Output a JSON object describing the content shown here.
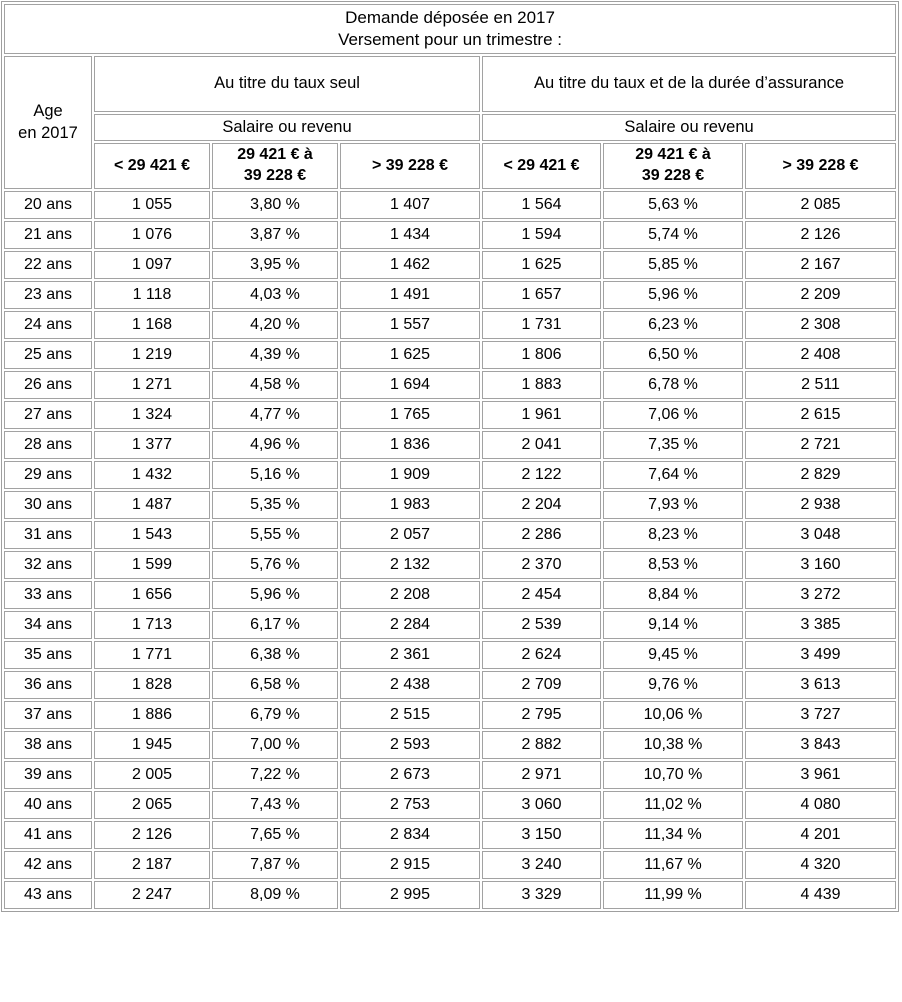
{
  "colors": {
    "border_outer": "#9f9f9f",
    "border_cell": "#a2a2a2",
    "background": "#ffffff",
    "text": "#000000"
  },
  "header": {
    "title": "Demande déposée en 2017\nVersement pour un trimestre :",
    "age_label": "Age\nen 2017",
    "group_left": "Au titre du taux seul",
    "group_right": "Au titre du taux et de la durée d’assurance",
    "subheader_left": "Salaire ou revenu",
    "subheader_right": "Salaire ou revenu",
    "ranges": [
      "< 29 421 €",
      "29 421 € à\n39 228 €",
      "> 39 228 €"
    ]
  },
  "rows": [
    [
      "20 ans",
      "1 055",
      "3,80 %",
      "1 407",
      "1 564",
      "5,63 %",
      "2 085"
    ],
    [
      "21 ans",
      "1 076",
      "3,87 %",
      "1 434",
      "1 594",
      "5,74 %",
      "2 126"
    ],
    [
      "22 ans",
      "1 097",
      "3,95 %",
      "1 462",
      "1 625",
      "5,85 %",
      "2 167"
    ],
    [
      "23 ans",
      "1 118",
      "4,03 %",
      "1 491",
      "1 657",
      "5,96 %",
      "2 209"
    ],
    [
      "24 ans",
      "1 168",
      "4,20 %",
      "1 557",
      "1 731",
      "6,23 %",
      "2 308"
    ],
    [
      "25 ans",
      "1 219",
      "4,39 %",
      "1 625",
      "1 806",
      "6,50 %",
      "2 408"
    ],
    [
      "26 ans",
      "1 271",
      "4,58 %",
      "1 694",
      "1 883",
      "6,78 %",
      "2 511"
    ],
    [
      "27 ans",
      "1 324",
      "4,77 %",
      "1 765",
      "1 961",
      "7,06 %",
      "2 615"
    ],
    [
      "28 ans",
      "1 377",
      "4,96 %",
      "1 836",
      "2 041",
      "7,35 %",
      "2 721"
    ],
    [
      "29 ans",
      "1 432",
      "5,16 %",
      "1 909",
      "2 122",
      "7,64 %",
      "2 829"
    ],
    [
      "30 ans",
      "1 487",
      "5,35 %",
      "1 983",
      "2 204",
      "7,93 %",
      "2 938"
    ],
    [
      "31 ans",
      "1 543",
      "5,55 %",
      "2 057",
      "2 286",
      "8,23 %",
      "3 048"
    ],
    [
      "32 ans",
      "1 599",
      "5,76 %",
      "2 132",
      "2 370",
      "8,53 %",
      "3 160"
    ],
    [
      "33 ans",
      "1 656",
      "5,96 %",
      "2 208",
      "2 454",
      "8,84 %",
      "3 272"
    ],
    [
      "34 ans",
      "1 713",
      "6,17 %",
      "2 284",
      "2 539",
      "9,14 %",
      "3 385"
    ],
    [
      "35 ans",
      "1 771",
      "6,38 %",
      "2 361",
      "2 624",
      "9,45 %",
      "3 499"
    ],
    [
      "36 ans",
      "1 828",
      "6,58 %",
      "2 438",
      "2 709",
      "9,76 %",
      "3 613"
    ],
    [
      "37 ans",
      "1 886",
      "6,79 %",
      "2 515",
      "2 795",
      "10,06 %",
      "3 727"
    ],
    [
      "38 ans",
      "1 945",
      "7,00 %",
      "2 593",
      "2 882",
      "10,38 %",
      "3 843"
    ],
    [
      "39 ans",
      "2 005",
      "7,22 %",
      "2 673",
      "2 971",
      "10,70 %",
      "3 961"
    ],
    [
      "40 ans",
      "2 065",
      "7,43 %",
      "2 753",
      "3 060",
      "11,02 %",
      "4 080"
    ],
    [
      "41 ans",
      "2 126",
      "7,65 %",
      "2 834",
      "3 150",
      "11,34 %",
      "4 201"
    ],
    [
      "42 ans",
      "2 187",
      "7,87 %",
      "2 915",
      "3 240",
      "11,67 %",
      "4 320"
    ],
    [
      "43 ans",
      "2 247",
      "8,09 %",
      "2 995",
      "3 329",
      "11,99 %",
      "4 439"
    ]
  ]
}
